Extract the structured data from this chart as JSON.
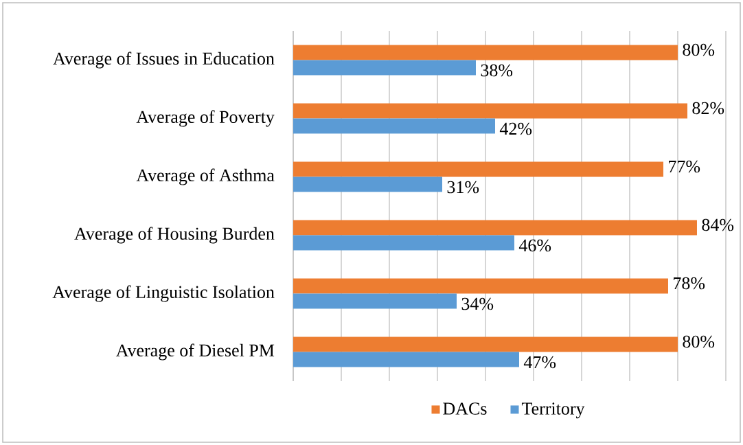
{
  "chart_data": {
    "type": "bar",
    "orientation": "horizontal",
    "categories": [
      "Average of Issues in Education",
      "Average of Poverty",
      "Average of Asthma",
      "Average of Housing Burden",
      "Average of Linguistic Isolation",
      "Average of Diesel PM"
    ],
    "series": [
      {
        "name": "DACs",
        "color": "#ed7d31",
        "values": [
          80,
          82,
          77,
          84,
          78,
          80
        ],
        "value_labels": [
          "80%",
          "82%",
          "77%",
          "84%",
          "78%",
          "80%"
        ]
      },
      {
        "name": "Territory",
        "color": "#5b9bd5",
        "values": [
          38,
          42,
          31,
          46,
          34,
          47
        ],
        "value_labels": [
          "38%",
          "42%",
          "31%",
          "46%",
          "34%",
          "47%"
        ]
      }
    ],
    "xlim": [
      0,
      90
    ],
    "xticks": [
      {
        "value": 0,
        "label": null
      },
      {
        "value": 10,
        "label": null
      },
      {
        "value": 20,
        "label": null
      },
      {
        "value": 30,
        "label": null
      },
      {
        "value": 40,
        "label": null
      },
      {
        "value": 50,
        "label": null
      },
      {
        "value": 60,
        "label": null
      },
      {
        "value": 70,
        "label": null
      },
      {
        "value": 80,
        "label": null
      },
      {
        "value": 90,
        "label": null
      }
    ],
    "grid": "x",
    "legend": "bottom",
    "tick_labels": "y"
  }
}
